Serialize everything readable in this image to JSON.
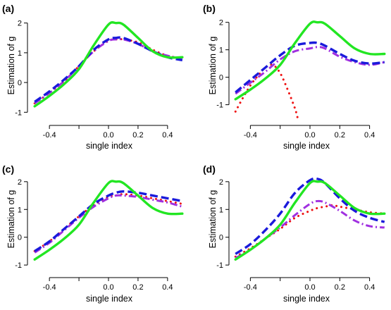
{
  "colors": {
    "truth": "#22e622",
    "est_blue": "#1a1adb",
    "est_purple": "#a030e0",
    "est_red": "#ee1111"
  },
  "chart_data": [
    {
      "type": "line",
      "label": "(a)",
      "xlabel": "single index",
      "ylabel": "Estimation of g",
      "xlim": [
        -0.52,
        0.52
      ],
      "ylim": [
        -1.3,
        2.3
      ],
      "xticks": [
        -0.4,
        -0.2,
        0,
        0.2,
        0.4
      ],
      "xtick_labels": [
        "-0.4",
        "",
        "0.0",
        "0.2",
        "0.4"
      ],
      "yticks": [
        -1,
        0,
        1,
        2
      ],
      "ytick_labels": [
        "-1",
        "0",
        "1",
        "2"
      ],
      "series": [
        {
          "style": "solid",
          "color": "#22e622",
          "x": [
            -0.5,
            -0.4,
            -0.3,
            -0.2,
            -0.1,
            0,
            0.05,
            0.1,
            0.2,
            0.3,
            0.4,
            0.5
          ],
          "y": [
            -0.8,
            -0.45,
            -0.05,
            0.45,
            1.25,
            1.95,
            2.0,
            1.95,
            1.5,
            1.05,
            0.85,
            0.85
          ]
        },
        {
          "style": "dashed",
          "color": "#1a1adb",
          "x": [
            -0.5,
            -0.4,
            -0.3,
            -0.2,
            -0.1,
            0,
            0.05,
            0.1,
            0.2,
            0.3,
            0.4,
            0.5
          ],
          "y": [
            -0.65,
            -0.3,
            0.1,
            0.55,
            1.1,
            1.45,
            1.5,
            1.5,
            1.3,
            1.05,
            0.85,
            0.75
          ]
        },
        {
          "style": "dashdot",
          "color": "#a030e0",
          "x": [
            -0.5,
            -0.4,
            -0.3,
            -0.2,
            -0.1,
            0,
            0.05,
            0.1,
            0.2,
            0.3,
            0.4,
            0.5
          ],
          "y": [
            -0.7,
            -0.35,
            0.05,
            0.55,
            1.05,
            1.4,
            1.45,
            1.45,
            1.3,
            1.05,
            0.9,
            0.8
          ]
        },
        {
          "style": "dotted",
          "color": "#ee1111",
          "x": [
            -0.5,
            -0.4,
            -0.3,
            -0.2,
            -0.1,
            0,
            0.05,
            0.1,
            0.2,
            0.3,
            0.4,
            0.5
          ],
          "y": [
            -0.7,
            -0.35,
            0.05,
            0.55,
            1.05,
            1.4,
            1.45,
            1.45,
            1.35,
            1.1,
            0.9,
            0.8
          ]
        }
      ]
    },
    {
      "type": "line",
      "label": "(b)",
      "xlabel": "single index",
      "ylabel": "Estimation of g",
      "xlim": [
        -0.52,
        0.52
      ],
      "ylim": [
        -1.6,
        2.3
      ],
      "xticks": [
        -0.4,
        -0.2,
        0,
        0.2,
        0.4
      ],
      "xtick_labels": [
        "-0.4",
        "",
        "0.0",
        "0.2",
        "0.4"
      ],
      "yticks": [
        -1,
        0,
        1,
        2
      ],
      "ytick_labels": [
        "-1",
        "0",
        "1",
        "2"
      ],
      "series": [
        {
          "style": "solid",
          "color": "#22e622",
          "x": [
            -0.5,
            -0.4,
            -0.3,
            -0.2,
            -0.1,
            0,
            0.05,
            0.1,
            0.2,
            0.3,
            0.4,
            0.5
          ],
          "y": [
            -0.8,
            -0.45,
            -0.05,
            0.45,
            1.25,
            1.95,
            2.0,
            1.95,
            1.5,
            1.05,
            0.85,
            0.85
          ]
        },
        {
          "style": "dashed",
          "color": "#1a1adb",
          "x": [
            -0.5,
            -0.4,
            -0.3,
            -0.2,
            -0.1,
            0,
            0.05,
            0.1,
            0.2,
            0.3,
            0.4,
            0.5
          ],
          "y": [
            -0.55,
            -0.1,
            0.35,
            0.8,
            1.15,
            1.25,
            1.25,
            1.15,
            0.85,
            0.6,
            0.5,
            0.55
          ]
        },
        {
          "style": "dashdot",
          "color": "#a030e0",
          "x": [
            -0.5,
            -0.4,
            -0.3,
            -0.2,
            -0.1,
            0,
            0.05,
            0.1,
            0.2,
            0.3,
            0.4,
            0.5
          ],
          "y": [
            -0.6,
            -0.2,
            0.2,
            0.65,
            0.95,
            1.05,
            1.1,
            1.05,
            0.75,
            0.55,
            0.45,
            0.55
          ]
        },
        {
          "style": "dotted",
          "color": "#ee1111",
          "x": [
            -0.5,
            -0.45,
            -0.4,
            -0.35,
            -0.3,
            -0.25,
            -0.2,
            -0.15,
            -0.1,
            -0.08
          ],
          "y": [
            -1.25,
            -0.75,
            -0.3,
            0.05,
            0.35,
            0.45,
            0.15,
            -0.45,
            -1.15,
            -1.55
          ]
        }
      ]
    },
    {
      "type": "line",
      "label": "(c)",
      "xlabel": "single index",
      "ylabel": "Estimation of g",
      "xlim": [
        -0.52,
        0.52
      ],
      "ylim": [
        -1.3,
        2.3
      ],
      "xticks": [
        -0.4,
        -0.2,
        0,
        0.2,
        0.4
      ],
      "xtick_labels": [
        "-0.4",
        "",
        "0.0",
        "0.2",
        "0.4"
      ],
      "yticks": [
        -1,
        0,
        1,
        2
      ],
      "ytick_labels": [
        "-1",
        "0",
        "1",
        "2"
      ],
      "series": [
        {
          "style": "solid",
          "color": "#22e622",
          "x": [
            -0.5,
            -0.4,
            -0.3,
            -0.2,
            -0.1,
            0,
            0.05,
            0.1,
            0.2,
            0.3,
            0.4,
            0.5
          ],
          "y": [
            -0.8,
            -0.45,
            -0.05,
            0.45,
            1.25,
            1.95,
            2.0,
            1.95,
            1.5,
            1.05,
            0.85,
            0.85
          ]
        },
        {
          "style": "dashed",
          "color": "#1a1adb",
          "x": [
            -0.5,
            -0.4,
            -0.3,
            -0.2,
            -0.1,
            0,
            0.05,
            0.1,
            0.2,
            0.3,
            0.4,
            0.5
          ],
          "y": [
            -0.5,
            -0.15,
            0.3,
            0.75,
            1.2,
            1.5,
            1.6,
            1.65,
            1.6,
            1.5,
            1.4,
            1.3
          ]
        },
        {
          "style": "dashdot",
          "color": "#a030e0",
          "x": [
            -0.5,
            -0.4,
            -0.3,
            -0.2,
            -0.1,
            0,
            0.05,
            0.1,
            0.2,
            0.3,
            0.4,
            0.5
          ],
          "y": [
            -0.55,
            -0.2,
            0.25,
            0.7,
            1.1,
            1.4,
            1.5,
            1.5,
            1.45,
            1.35,
            1.25,
            1.1
          ]
        },
        {
          "style": "dotted",
          "color": "#ee1111",
          "x": [
            -0.5,
            -0.4,
            -0.3,
            -0.2,
            -0.1,
            0,
            0.05,
            0.1,
            0.2,
            0.3,
            0.4,
            0.5
          ],
          "y": [
            -0.5,
            -0.15,
            0.3,
            0.75,
            1.15,
            1.45,
            1.5,
            1.55,
            1.5,
            1.4,
            1.3,
            1.2
          ]
        }
      ]
    },
    {
      "type": "line",
      "label": "(d)",
      "xlabel": "single index",
      "ylabel": "Estimation of g",
      "xlim": [
        -0.52,
        0.52
      ],
      "ylim": [
        -1.3,
        2.3
      ],
      "xticks": [
        -0.4,
        -0.2,
        0,
        0.2,
        0.4
      ],
      "xtick_labels": [
        "-0.4",
        "",
        "0.0",
        "0.2",
        "0.4"
      ],
      "yticks": [
        -1,
        0,
        1,
        2
      ],
      "ytick_labels": [
        "-1",
        "0",
        "1",
        "2"
      ],
      "series": [
        {
          "style": "solid",
          "color": "#22e622",
          "x": [
            -0.5,
            -0.4,
            -0.3,
            -0.2,
            -0.1,
            0,
            0.05,
            0.1,
            0.2,
            0.3,
            0.4,
            0.5
          ],
          "y": [
            -0.8,
            -0.45,
            -0.05,
            0.45,
            1.25,
            1.95,
            2.0,
            1.95,
            1.5,
            1.05,
            0.85,
            0.85
          ]
        },
        {
          "style": "dashed",
          "color": "#1a1adb",
          "x": [
            -0.5,
            -0.4,
            -0.3,
            -0.2,
            -0.1,
            0,
            0.05,
            0.1,
            0.2,
            0.3,
            0.4,
            0.5
          ],
          "y": [
            -0.6,
            -0.25,
            0.25,
            0.85,
            1.6,
            2.05,
            2.1,
            1.95,
            1.4,
            0.95,
            0.7,
            0.55
          ]
        },
        {
          "style": "dashdot",
          "color": "#a030e0",
          "x": [
            -0.5,
            -0.4,
            -0.3,
            -0.2,
            -0.1,
            0,
            0.05,
            0.1,
            0.2,
            0.3,
            0.4,
            0.5
          ],
          "y": [
            -0.75,
            -0.45,
            -0.05,
            0.35,
            0.8,
            1.2,
            1.3,
            1.25,
            0.95,
            0.6,
            0.4,
            0.35
          ]
        },
        {
          "style": "dotted",
          "color": "#ee1111",
          "x": [
            -0.5,
            -0.4,
            -0.3,
            -0.2,
            -0.1,
            0,
            0.05,
            0.1,
            0.15,
            0.2,
            0.3,
            0.4,
            0.5
          ],
          "y": [
            -0.7,
            -0.4,
            -0.05,
            0.3,
            0.7,
            0.95,
            1.05,
            1.1,
            1.15,
            1.1,
            1.0,
            0.9,
            0.85
          ]
        }
      ]
    }
  ]
}
